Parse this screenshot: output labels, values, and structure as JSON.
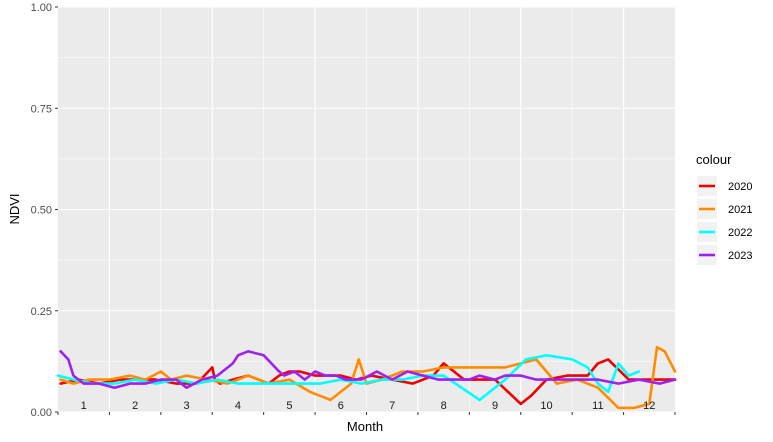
{
  "chart_data": {
    "type": "line",
    "xlabel": "Month",
    "ylabel": "NDVI",
    "xlim": [
      0.5,
      12.5
    ],
    "ylim": [
      0,
      1
    ],
    "y_ticks": [
      "0.00",
      "0.25",
      "0.50",
      "0.75",
      "1.00"
    ],
    "y_tick_values": [
      0,
      0.25,
      0.5,
      0.75,
      1.0
    ],
    "x_tick_labels": [
      "1",
      "2",
      "3",
      "4",
      "5",
      "6",
      "7",
      "8",
      "9",
      "10",
      "11",
      "12"
    ],
    "grid": true,
    "legend": {
      "title": "colour",
      "position": "right"
    },
    "series": [
      {
        "name": "2020",
        "color": "#ee0000",
        "x": [
          0.55,
          0.9,
          1.3,
          1.7,
          2.0,
          2.4,
          2.8,
          3.2,
          3.5,
          3.55,
          3.65,
          3.9,
          4.2,
          4.4,
          4.6,
          4.8,
          5.0,
          5.2,
          5.5,
          5.8,
          6.0,
          6.3,
          6.6,
          7.0,
          7.4,
          7.8,
          8.0,
          8.2,
          8.4,
          8.7,
          9.0,
          9.5,
          9.7,
          10.0,
          10.4,
          10.8,
          11.0,
          11.2,
          11.6,
          12.0,
          12.5
        ],
        "y": [
          0.07,
          0.08,
          0.07,
          0.08,
          0.08,
          0.08,
          0.07,
          0.07,
          0.11,
          0.08,
          0.07,
          0.08,
          0.09,
          0.08,
          0.07,
          0.09,
          0.1,
          0.1,
          0.09,
          0.09,
          0.09,
          0.08,
          0.09,
          0.08,
          0.07,
          0.09,
          0.12,
          0.1,
          0.08,
          0.08,
          0.08,
          0.02,
          0.04,
          0.08,
          0.09,
          0.09,
          0.12,
          0.13,
          0.08,
          0.08,
          0.08
        ]
      },
      {
        "name": "2021",
        "color": "#ff8c00",
        "x": [
          0.55,
          0.8,
          1.1,
          1.5,
          1.9,
          2.2,
          2.5,
          2.7,
          3.0,
          3.4,
          3.8,
          4.2,
          4.6,
          5.0,
          5.4,
          5.8,
          6.2,
          6.35,
          6.5,
          6.8,
          7.2,
          7.6,
          8.0,
          8.4,
          8.8,
          9.2,
          9.5,
          9.8,
          10.2,
          10.6,
          11.0,
          11.4,
          11.7,
          12.0,
          12.15,
          12.3,
          12.5
        ],
        "y": [
          0.08,
          0.07,
          0.08,
          0.08,
          0.09,
          0.08,
          0.1,
          0.08,
          0.09,
          0.08,
          0.07,
          0.09,
          0.07,
          0.08,
          0.05,
          0.03,
          0.07,
          0.13,
          0.07,
          0.08,
          0.1,
          0.1,
          0.11,
          0.11,
          0.11,
          0.11,
          0.12,
          0.13,
          0.07,
          0.08,
          0.06,
          0.01,
          0.01,
          0.02,
          0.16,
          0.15,
          0.1
        ]
      },
      {
        "name": "2022",
        "color": "#00ffff",
        "x": [
          0.5,
          0.8,
          1.2,
          1.6,
          2.0,
          2.4,
          2.8,
          3.2,
          3.6,
          4.0,
          4.4,
          4.8,
          5.2,
          5.6,
          6.0,
          6.4,
          6.8,
          7.2,
          7.6,
          8.0,
          8.7,
          9.2,
          9.6,
          10.0,
          10.5,
          10.8,
          11.0,
          11.2,
          11.4,
          11.6,
          11.8
        ],
        "y": [
          0.09,
          0.08,
          0.07,
          0.07,
          0.08,
          0.07,
          0.08,
          0.07,
          0.08,
          0.07,
          0.07,
          0.07,
          0.07,
          0.07,
          0.08,
          0.07,
          0.08,
          0.08,
          0.09,
          0.09,
          0.03,
          0.08,
          0.13,
          0.14,
          0.13,
          0.11,
          0.07,
          0.05,
          0.12,
          0.09,
          0.1
        ]
      },
      {
        "name": "2023",
        "color": "#a020f0",
        "x": [
          0.55,
          0.7,
          0.8,
          1.0,
          1.3,
          1.6,
          1.9,
          2.2,
          2.5,
          2.8,
          3.0,
          3.3,
          3.6,
          3.9,
          4.0,
          4.2,
          4.5,
          4.8,
          4.9,
          5.1,
          5.3,
          5.5,
          5.7,
          5.9,
          6.1,
          6.4,
          6.7,
          7.0,
          7.3,
          7.6,
          7.9,
          8.2,
          8.5,
          8.7,
          9.0,
          9.2,
          9.5,
          9.8,
          10.2,
          10.6,
          11.0,
          11.4,
          11.8,
          12.2,
          12.5
        ],
        "y": [
          0.15,
          0.13,
          0.09,
          0.07,
          0.07,
          0.06,
          0.07,
          0.07,
          0.08,
          0.08,
          0.06,
          0.08,
          0.09,
          0.12,
          0.14,
          0.15,
          0.14,
          0.1,
          0.09,
          0.1,
          0.08,
          0.1,
          0.09,
          0.09,
          0.08,
          0.08,
          0.1,
          0.08,
          0.1,
          0.09,
          0.08,
          0.08,
          0.08,
          0.09,
          0.08,
          0.09,
          0.09,
          0.08,
          0.08,
          0.08,
          0.08,
          0.07,
          0.08,
          0.07,
          0.08
        ]
      }
    ]
  }
}
